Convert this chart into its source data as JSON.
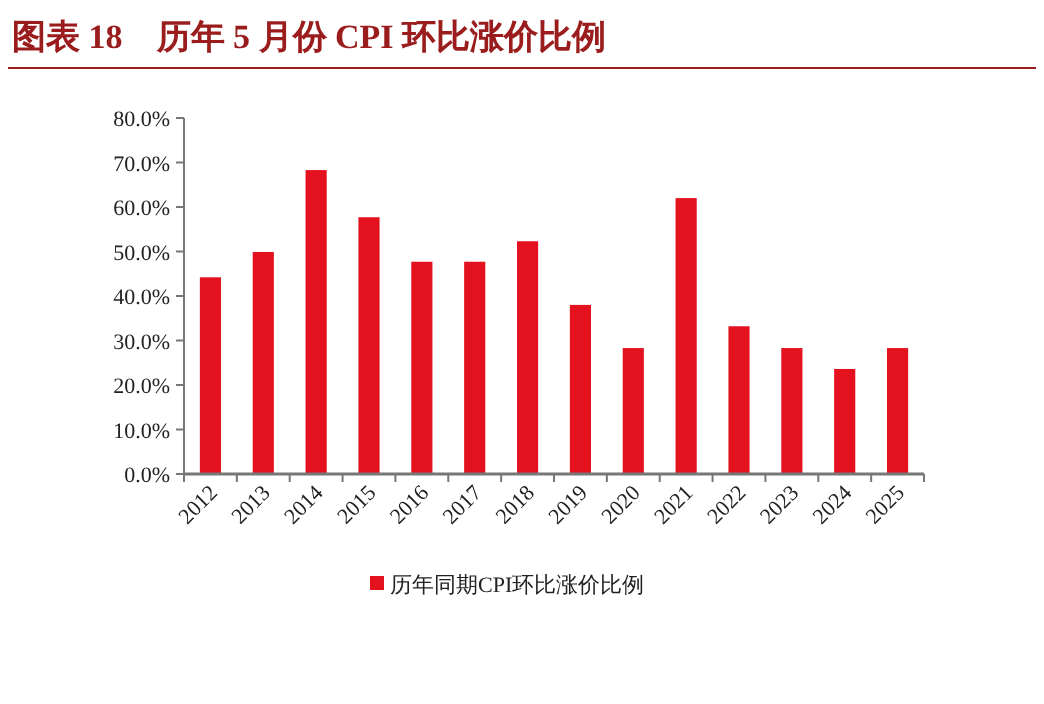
{
  "chart_data": {
    "type": "bar",
    "title": "图表 18　历年 5 月份 CPI 环比涨价比例",
    "categories": [
      "2012",
      "2013",
      "2014",
      "2015",
      "2016",
      "2017",
      "2018",
      "2019",
      "2020",
      "2021",
      "2022",
      "2023",
      "2024",
      "2025"
    ],
    "series": [
      {
        "name": "历年同期CPI环比涨价比例",
        "color": "#e3121e",
        "values": [
          44.2,
          49.9,
          68.3,
          57.7,
          47.7,
          47.7,
          52.3,
          38.0,
          28.3,
          62.0,
          33.2,
          28.3,
          23.6,
          28.3
        ]
      }
    ],
    "ylim": [
      0,
      80
    ],
    "yticks": [
      {
        "value": 0,
        "label": "0.0%"
      },
      {
        "value": 10,
        "label": "10.0%"
      },
      {
        "value": 20,
        "label": "20.0%"
      },
      {
        "value": 30,
        "label": "30.0%"
      },
      {
        "value": 40,
        "label": "40.0%"
      },
      {
        "value": 50,
        "label": "50.0%"
      },
      {
        "value": 60,
        "label": "60.0%"
      },
      {
        "value": 70,
        "label": "70.0%"
      },
      {
        "value": 80,
        "label": "80.0%"
      }
    ],
    "legend": "bottom"
  }
}
